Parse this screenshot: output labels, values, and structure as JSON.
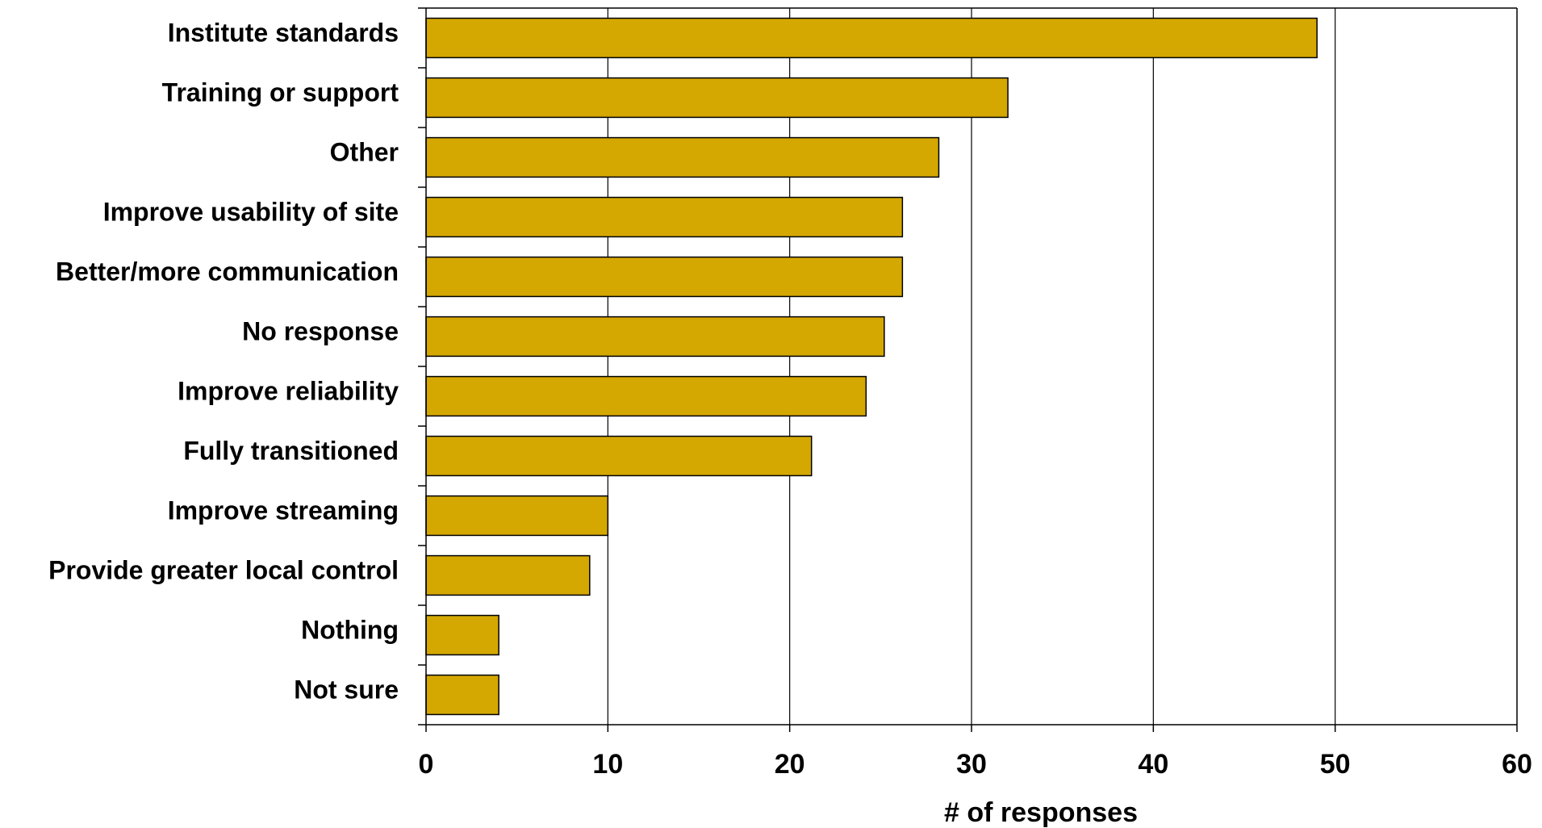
{
  "chart_data": {
    "type": "bar",
    "orientation": "horizontal",
    "categories": [
      "Institute standards",
      "Training or support",
      "Other",
      "Improve usability of site",
      "Better/more communication",
      "No response",
      "Improve reliability",
      "Fully transitioned",
      "Improve streaming",
      "Provide greater local control",
      "Nothing",
      "Not sure"
    ],
    "values": [
      49,
      32,
      28.2,
      26.2,
      26.2,
      25.2,
      24.2,
      21.2,
      10,
      9,
      4,
      4
    ],
    "title": "",
    "xlabel": "# of responses",
    "ylabel": "",
    "xlim": [
      0,
      60
    ],
    "xticks": [
      0,
      10,
      20,
      30,
      40,
      50,
      60
    ],
    "grid": "vertical",
    "bar_color": "#D4A800",
    "bar_edge_color": "#000000"
  }
}
